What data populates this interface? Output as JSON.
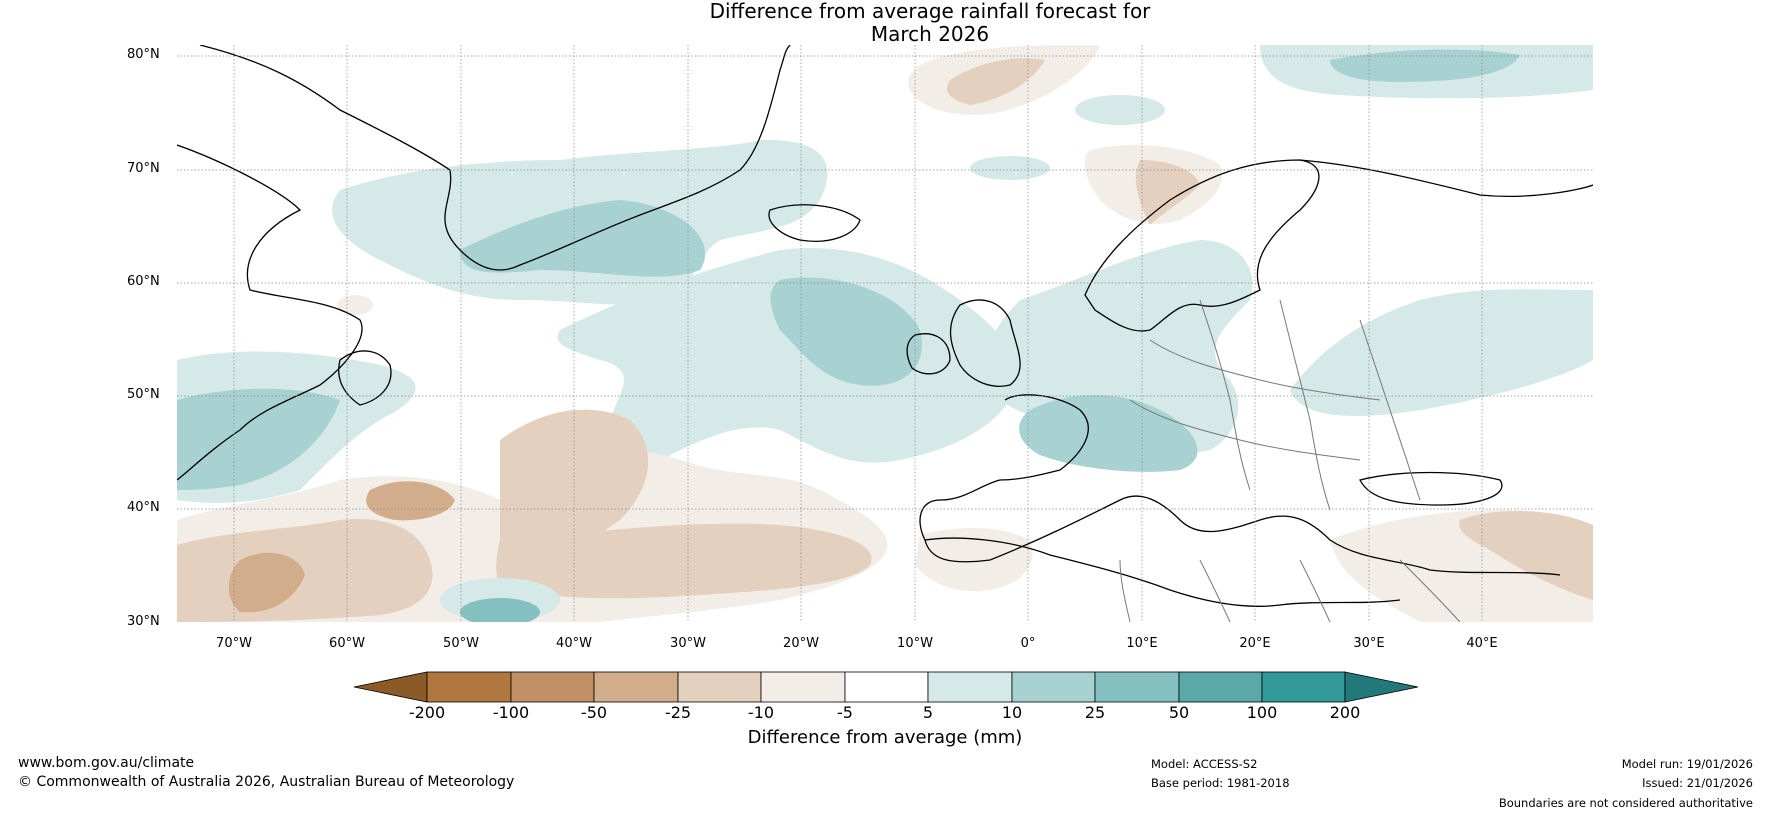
{
  "title_line1": "Difference from average rainfall forecast for",
  "title_line2": "March 2026",
  "lat_labels": [
    "80°N",
    "70°N",
    "60°N",
    "50°N",
    "40°N",
    "30°N"
  ],
  "lon_labels": [
    "70°W",
    "60°W",
    "50°W",
    "40°W",
    "30°W",
    "20°W",
    "10°W",
    "0°",
    "10°E",
    "20°E",
    "30°E",
    "40°E"
  ],
  "colorbar": {
    "ticks": [
      "-200",
      "-100",
      "-50",
      "-25",
      "-10",
      "-5",
      "5",
      "10",
      "25",
      "50",
      "100",
      "200"
    ],
    "colors": [
      "#8c5a26",
      "#b07840",
      "#c19066",
      "#d2ad8b",
      "#e4d0bf",
      "#f2ede7",
      "#ffffff",
      "#d5e9e8",
      "#a8d2d2",
      "#84c0bf",
      "#5aa9a8",
      "#329b9a",
      "#237879"
    ],
    "label": "Difference from average (mm)"
  },
  "footer": {
    "website": "www.bom.gov.au/climate",
    "copyright": "© Commonwealth of Australia 2026, Australian Bureau of Meteorology",
    "model": "Model: ACCESS-S2",
    "base_period": "Base period: 1981-2018",
    "model_run": "Model run: 19/01/2026",
    "issued": "Issued: 21/01/2026",
    "disclaimer": "Boundaries are not considered authoritative"
  }
}
